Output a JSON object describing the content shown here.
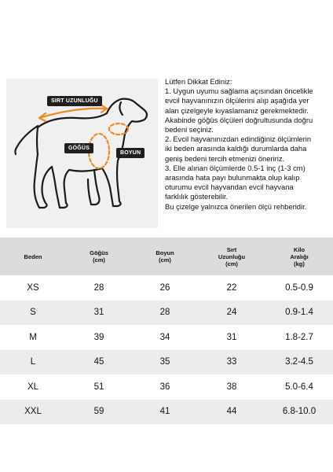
{
  "diagram": {
    "back_length_label": "SIRT UZUNLUĞU",
    "chest_label": "GÖĞÜS",
    "neck_label": "BOYUN"
  },
  "notes": {
    "title": "Lütfen Dikkat Ediniz:",
    "lines": [
      "1. Uygun uyumu sağlama açısından öncelikle",
      "evcil hayvanınızın ölçülerini alıp aşağıda yer",
      "alan çizelgeyle kıyaslamanız gerekmektedir.",
      "Akabinde göğüs ölçüleri doğrultusunda doğru",
      "bedeni seçiniz.",
      "2. Evcil hayvanınızdan edindiğiniz ölçümlerin",
      "iki beden arasında kaldığı durumlarda daha",
      "geniş bedeni tercih etmenizi öneririz.",
      "3. Elle alınan ölçümlerde 0.5-1 inç (1-3 cm)",
      "arasında hata payı bulunmakta olup kalıp",
      "oturumu evcil hayvandan evcil hayvana",
      "farklılık gösterebilir.",
      "Bu çizelge yalnızca önerilen ölçü rehberidir."
    ]
  },
  "table": {
    "headers": [
      {
        "line1": "Beden",
        "line2": ""
      },
      {
        "line1": "Göğüs",
        "line2": "(cm)"
      },
      {
        "line1": "Boyun",
        "line2": "(cm)"
      },
      {
        "line1": "Sırt",
        "line2": "Uzunluğu",
        "line3": "(cm)"
      },
      {
        "line1": "Kilo",
        "line2": "Aralığı",
        "line3": "(kg)"
      }
    ],
    "rows": [
      [
        "XS",
        "28",
        "26",
        "22",
        "0.5-0.9"
      ],
      [
        "S",
        "31",
        "28",
        "24",
        "0.9-1.4"
      ],
      [
        "M",
        "39",
        "34",
        "31",
        "1.8-2.7"
      ],
      [
        "L",
        "45",
        "35",
        "33",
        "3.2-4.5"
      ],
      [
        "XL",
        "51",
        "36",
        "38",
        "5.0-6.4"
      ],
      [
        "XXL",
        "59",
        "41",
        "44",
        "6.8-10.0"
      ]
    ]
  },
  "colors": {
    "accent_orange": "#f08a24",
    "dark": "#1f1f1f"
  }
}
